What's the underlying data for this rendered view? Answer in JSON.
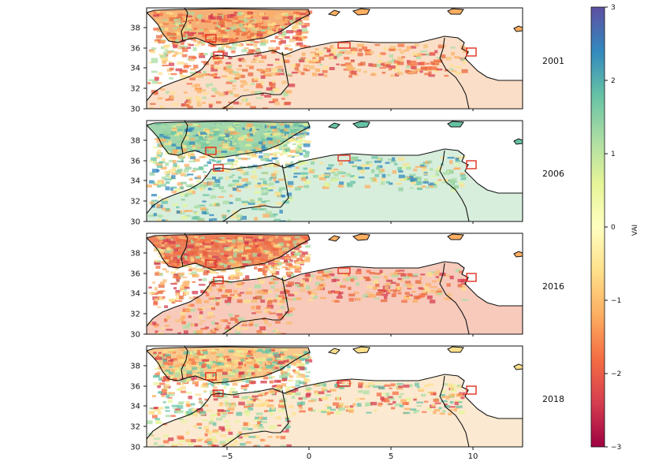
{
  "figure": {
    "x_ticks": [
      "−5",
      "0",
      "5",
      "10"
    ],
    "y_ticks": [
      "30",
      "32",
      "34",
      "36",
      "38"
    ],
    "panels": [
      {
        "year": "2001",
        "tone": "dry",
        "dominant_color": "#f4a15e"
      },
      {
        "year": "2006",
        "tone": "wet",
        "dominant_color": "#8fcf9f"
      },
      {
        "year": "2016",
        "tone": "dry",
        "dominant_color": "#e8683f"
      },
      {
        "year": "2018",
        "tone": "mixed",
        "dominant_color": "#f7c07a"
      }
    ],
    "colorbar": {
      "label": "VAI",
      "ticks": [
        "3",
        "2",
        "1",
        "0",
        "−1",
        "−2",
        "−3"
      ],
      "colormap": [
        "#9e0142",
        "#d53e4f",
        "#f46d43",
        "#fdae61",
        "#fee08b",
        "#ffffbf",
        "#e6f598",
        "#abdda4",
        "#66c2a5",
        "#3288bd",
        "#5e4fa2"
      ]
    },
    "colors": {
      "land_fill": "#f7d898",
      "border": "#111111",
      "box": "#e0301e",
      "sea": "#ffffff"
    }
  }
}
